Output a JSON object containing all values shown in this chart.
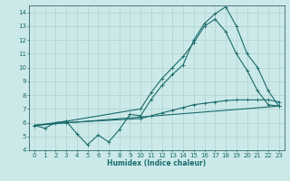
{
  "background_color": "#cce9e9",
  "grid_color": "#b0d0d0",
  "line_color": "#1a6b6b",
  "spine_color": "#336666",
  "xlim": [
    -0.5,
    23.5
  ],
  "ylim": [
    4,
    14.5
  ],
  "xticks": [
    0,
    1,
    2,
    3,
    4,
    5,
    6,
    7,
    8,
    9,
    10,
    11,
    12,
    13,
    14,
    15,
    16,
    17,
    18,
    19,
    20,
    21,
    22,
    23
  ],
  "yticks": [
    4,
    5,
    6,
    7,
    8,
    9,
    10,
    11,
    12,
    13,
    14
  ],
  "xlabel": "Humidex (Indice chaleur)",
  "series": [
    {
      "x": [
        0,
        1,
        2,
        3,
        4,
        5,
        6,
        7,
        8,
        9,
        10,
        11,
        12,
        13,
        14,
        15,
        16,
        17,
        18,
        19,
        20,
        21,
        22,
        23
      ],
      "y": [
        5.8,
        5.6,
        6.0,
        6.1,
        5.2,
        4.4,
        5.1,
        4.6,
        5.5,
        6.6,
        6.5,
        7.7,
        8.7,
        9.5,
        10.2,
        12.0,
        13.2,
        13.9,
        14.4,
        13.0,
        11.0,
        10.0,
        8.3,
        7.2
      ]
    },
    {
      "x": [
        0,
        3,
        10,
        11,
        12,
        13,
        14,
        15,
        16,
        17,
        18,
        19,
        20,
        21,
        22,
        23
      ],
      "y": [
        5.8,
        6.1,
        7.0,
        8.2,
        9.2,
        10.0,
        10.8,
        11.8,
        13.0,
        13.5,
        12.6,
        11.0,
        9.8,
        8.3,
        7.3,
        7.2
      ]
    },
    {
      "x": [
        0,
        23
      ],
      "y": [
        5.8,
        7.2
      ]
    },
    {
      "x": [
        0,
        3,
        10,
        11,
        12,
        13,
        14,
        15,
        16,
        17,
        18,
        19,
        20,
        21,
        22,
        23
      ],
      "y": [
        5.8,
        6.0,
        6.3,
        6.5,
        6.7,
        6.9,
        7.1,
        7.3,
        7.4,
        7.5,
        7.6,
        7.65,
        7.65,
        7.65,
        7.65,
        7.5
      ]
    }
  ]
}
